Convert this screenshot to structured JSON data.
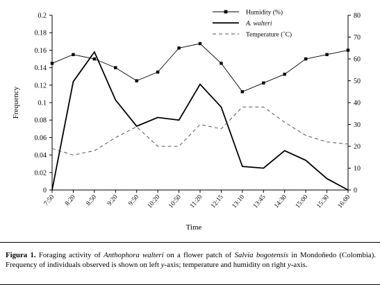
{
  "chart_data": {
    "type": "line",
    "categories": [
      "7:50",
      "8:20",
      "8:50",
      "9:20",
      "9:50",
      "10:20",
      "10:50",
      "11:20",
      "12:15",
      "13:10",
      "13:45",
      "14:30",
      "15:00",
      "15:30",
      "16:00"
    ],
    "xlabel": "Time",
    "ylabel_left": "Frequency",
    "ylim_left": [
      0,
      0.2
    ],
    "yticks_left": [
      "0",
      "0.02",
      "0.04",
      "0.06",
      "0.08",
      "0.1",
      "0.12",
      "0.14",
      "0.16",
      "0.18",
      "0.2"
    ],
    "ylim_right": [
      0,
      80
    ],
    "yticks_right": [
      "0",
      "10",
      "20",
      "30",
      "40",
      "50",
      "60",
      "70",
      "80"
    ],
    "legend_position": "top-right",
    "grid": false,
    "series": [
      {
        "name": "Humidity (%)",
        "axis": "right",
        "style": "line-with-square-markers",
        "values": [
          58,
          62,
          60,
          56,
          50,
          54,
          65,
          67,
          58,
          45,
          49,
          53,
          60,
          62,
          64
        ]
      },
      {
        "name": "A. walteri",
        "axis": "left",
        "style": "solid-thick",
        "values": [
          0,
          0.124,
          0.158,
          0.103,
          0.073,
          0.083,
          0.08,
          0.121,
          0.095,
          0.027,
          0.025,
          0.045,
          0.034,
          0.013,
          0
        ]
      },
      {
        "name": "Temperature (˚C)",
        "axis": "right",
        "style": "dashed",
        "values": [
          19,
          16,
          18,
          24,
          29,
          20,
          20,
          30,
          28,
          38,
          38,
          31,
          25,
          22,
          21
        ]
      }
    ]
  },
  "caption": {
    "label": "Figura 1.",
    "text_1": " Foraging activity of ",
    "species_1": "Anthophora walteri",
    "text_2": " on a flower patch of ",
    "species_2": "Salvia bogotensis",
    "text_3": " in Mondoñedo (Colombia). Frequency of individuals observed is shown on left ",
    "axis_1": "y",
    "text_4": "-axis; temperature and humidity on right ",
    "axis_2": "y",
    "text_5": "-axis."
  },
  "colors": {
    "line": "#000000",
    "dashed": "#555555",
    "background": "#ffffff"
  }
}
